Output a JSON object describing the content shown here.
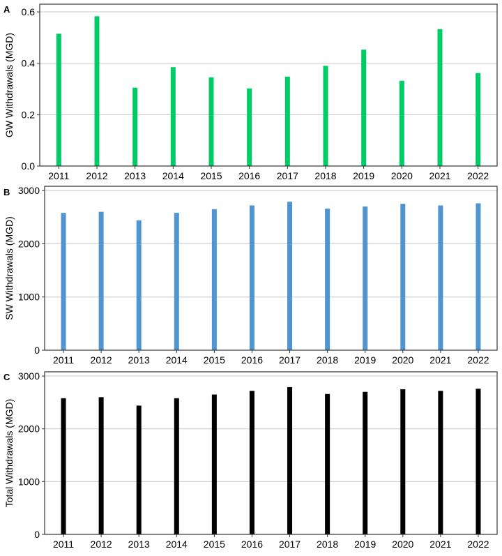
{
  "chart_data": [
    {
      "type": "bar",
      "panel_label": "A",
      "ylabel": "GW Withdrawals (MGD)",
      "xlabel": "",
      "categories": [
        "2011",
        "2012",
        "2013",
        "2014",
        "2015",
        "2016",
        "2017",
        "2018",
        "2019",
        "2020",
        "2021",
        "2022"
      ],
      "values": [
        0.515,
        0.583,
        0.305,
        0.385,
        0.345,
        0.302,
        0.348,
        0.39,
        0.453,
        0.332,
        0.533,
        0.362
      ],
      "ylim": [
        0,
        0.63
      ],
      "yticks": [
        0.0,
        0.2,
        0.4,
        0.6
      ],
      "ytick_labels": [
        "0.0",
        "0.2",
        "0.4",
        "0.6"
      ],
      "color": "#00cc66",
      "grid": true,
      "legend": "none"
    },
    {
      "type": "bar",
      "panel_label": "B",
      "ylabel": "SW Withdrawals (MGD)",
      "xlabel": "",
      "categories": [
        "2011",
        "2012",
        "2013",
        "2014",
        "2015",
        "2016",
        "2017",
        "2018",
        "2019",
        "2020",
        "2021",
        "2022"
      ],
      "values": [
        2580,
        2600,
        2440,
        2580,
        2650,
        2720,
        2790,
        2660,
        2700,
        2750,
        2720,
        2760
      ],
      "ylim": [
        0,
        3080
      ],
      "yticks": [
        0,
        1000,
        2000,
        3000
      ],
      "ytick_labels": [
        "0",
        "1000",
        "2000",
        "3000"
      ],
      "color": "#5095cf",
      "grid": true,
      "legend": "none"
    },
    {
      "type": "bar",
      "panel_label": "C",
      "ylabel": "Total Withdrawals (MGD)",
      "xlabel": "",
      "categories": [
        "2011",
        "2012",
        "2013",
        "2014",
        "2015",
        "2016",
        "2017",
        "2018",
        "2019",
        "2020",
        "2021",
        "2022"
      ],
      "values": [
        2580,
        2600,
        2440,
        2580,
        2650,
        2720,
        2790,
        2660,
        2700,
        2750,
        2720,
        2760
      ],
      "ylim": [
        0,
        3080
      ],
      "yticks": [
        0,
        1000,
        2000,
        3000
      ],
      "ytick_labels": [
        "0",
        "1000",
        "2000",
        "3000"
      ],
      "color": "#000000",
      "grid": true,
      "legend": "none"
    }
  ]
}
